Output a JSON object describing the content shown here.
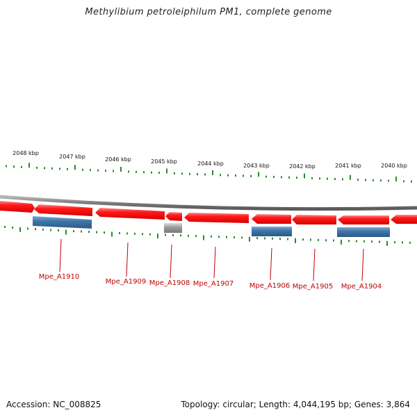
{
  "header": {
    "title": "Methylibium petroleiphilum PM1, complete genome"
  },
  "footer": {
    "accession": "Accession: NC_008825",
    "summary": "Topology: circular; Length: 4,044,195 bp; Genes: 3,864"
  },
  "ruler": {
    "labels": [
      "2048 kbp",
      "2047 kbp",
      "2046 kbp",
      "2045 kbp",
      "2044 kbp",
      "2043 kbp",
      "2042 kbp",
      "2041 kbp",
      "2040 kbp"
    ]
  },
  "colors": {
    "gene": "#ee1111",
    "gene_light": "#ff7777",
    "cds_blue": "#3f76a8",
    "cds_grey": "#9a9a9a",
    "tick_green": "#2a8a2a",
    "label_red": "#c00000",
    "backbone": "#8a8a8a"
  },
  "genes": [
    {
      "label": "Mpe_A1910",
      "feature": "blue"
    },
    {
      "label": "Mpe_A1909",
      "feature": "none"
    },
    {
      "label": "Mpe_A1908",
      "feature": "grey"
    },
    {
      "label": "Mpe_A1907",
      "feature": "none"
    },
    {
      "label": "Mpe_A1906",
      "feature": "blue"
    },
    {
      "label": "Mpe_A1905",
      "feature": "none"
    },
    {
      "label": "Mpe_A1904",
      "feature": "blue"
    }
  ]
}
